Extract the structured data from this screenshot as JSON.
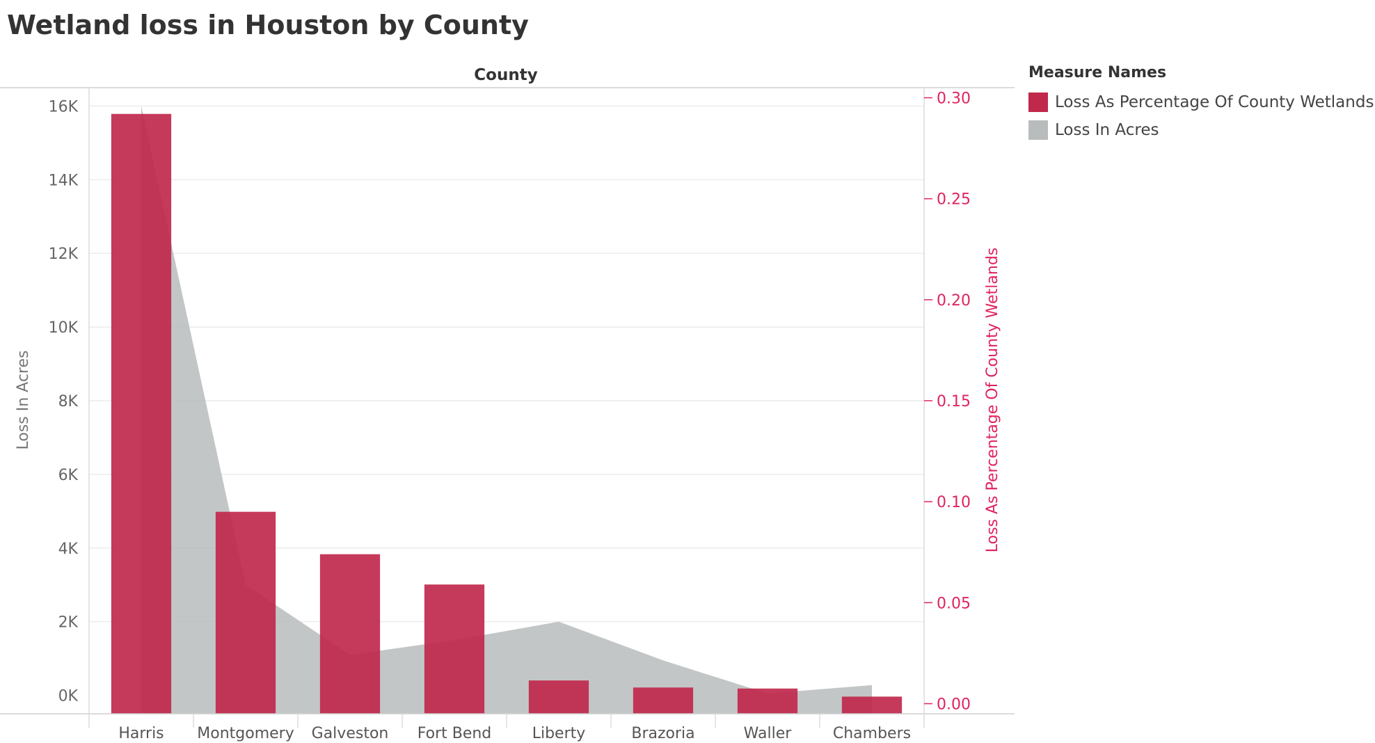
{
  "page_title": "Wetland loss in Houston by County",
  "legend": {
    "title": "Measure Names",
    "items": [
      {
        "label": "Loss As Percentage Of County Wetlands",
        "color": "#c0284c"
      },
      {
        "label": "Loss In Acres",
        "color": "#b9bcbc"
      }
    ]
  },
  "chart_data": {
    "type": "bar",
    "column_header": "County",
    "categories": [
      "Harris",
      "Montgomery",
      "Galveston",
      "Fort Bend",
      "Liberty",
      "Brazoria",
      "Waller",
      "Chambers"
    ],
    "series": [
      {
        "name": "Loss As Percentage Of County Wetlands",
        "mark": "bar",
        "axis": "right",
        "color": "#c0284c",
        "values": [
          0.292,
          0.095,
          0.074,
          0.059,
          0.0115,
          0.008,
          0.0075,
          0.0035
        ]
      },
      {
        "name": "Loss In Acres",
        "mark": "area",
        "axis": "left",
        "color": "#b9bcbc",
        "values": [
          16000,
          3000,
          1100,
          1500,
          2000,
          950,
          50,
          280
        ]
      }
    ],
    "y_left": {
      "label": "Loss In Acres",
      "range": [
        -500,
        16500
      ],
      "ticks": [
        0,
        2000,
        4000,
        6000,
        8000,
        10000,
        12000,
        14000,
        16000
      ],
      "tick_labels": [
        "0K",
        "2K",
        "4K",
        "6K",
        "8K",
        "10K",
        "12K",
        "14K",
        "16K"
      ]
    },
    "y_right": {
      "label": "Loss As Percentage Of County Wetlands",
      "range": [
        -0.005,
        0.305
      ],
      "ticks": [
        0.0,
        0.05,
        0.1,
        0.15,
        0.2,
        0.25,
        0.3
      ],
      "tick_labels": [
        "0.00",
        "0.05",
        "0.10",
        "0.15",
        "0.20",
        "0.25",
        "0.30"
      ],
      "color": "#e0245e"
    },
    "grid": true,
    "legend_position": "right"
  }
}
